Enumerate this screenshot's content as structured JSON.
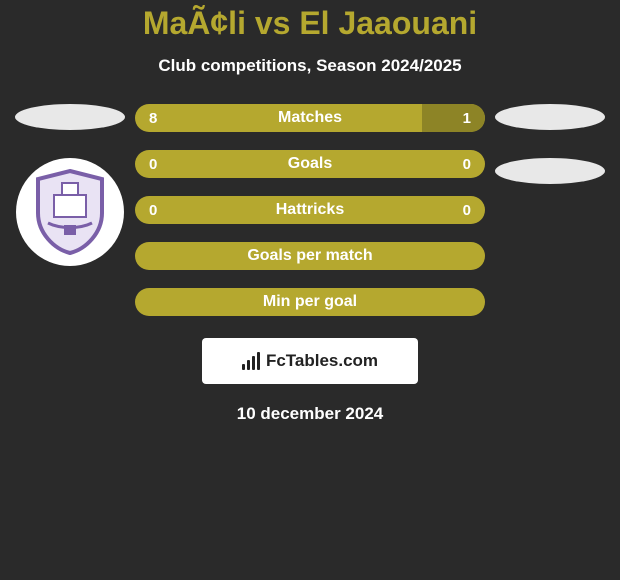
{
  "title": "MaÃ¢li vs El Jaaouani",
  "subtitle": "Club competitions, Season 2024/2025",
  "date": "10 december 2024",
  "attribution_text": "FcTables.com",
  "colors": {
    "bar_primary": "#b5a82f",
    "bar_secondary": "#8d8426",
    "ellipse": "#e8e8e8",
    "badge_bg": "#ffffff",
    "shield_border": "#7a5fa8",
    "shield_fill": "#e9e3f4",
    "text_white": "#ffffff",
    "attribution_bg": "#ffffff"
  },
  "fonts": {
    "title_size": 32,
    "subtitle_size": 17,
    "bar_label_size": 16,
    "bar_value_size": 15
  },
  "bars": [
    {
      "label": "Matches",
      "left": "8",
      "right": "1",
      "right_fill_pct": 18,
      "right_fill_color": "#8d8426"
    },
    {
      "label": "Goals",
      "left": "0",
      "right": "0",
      "right_fill_pct": 0,
      "right_fill_color": "#8d8426"
    },
    {
      "label": "Hattricks",
      "left": "0",
      "right": "0",
      "right_fill_pct": 0,
      "right_fill_color": "#8d8426"
    },
    {
      "label": "Goals per match",
      "left": "",
      "right": "",
      "right_fill_pct": 0,
      "right_fill_color": "#8d8426"
    },
    {
      "label": "Min per goal",
      "left": "",
      "right": "",
      "right_fill_pct": 0,
      "right_fill_color": "#8d8426"
    }
  ],
  "left_side": {
    "show_ellipse": true,
    "show_badge": true
  },
  "right_side": {
    "ellipse_count": 2
  }
}
